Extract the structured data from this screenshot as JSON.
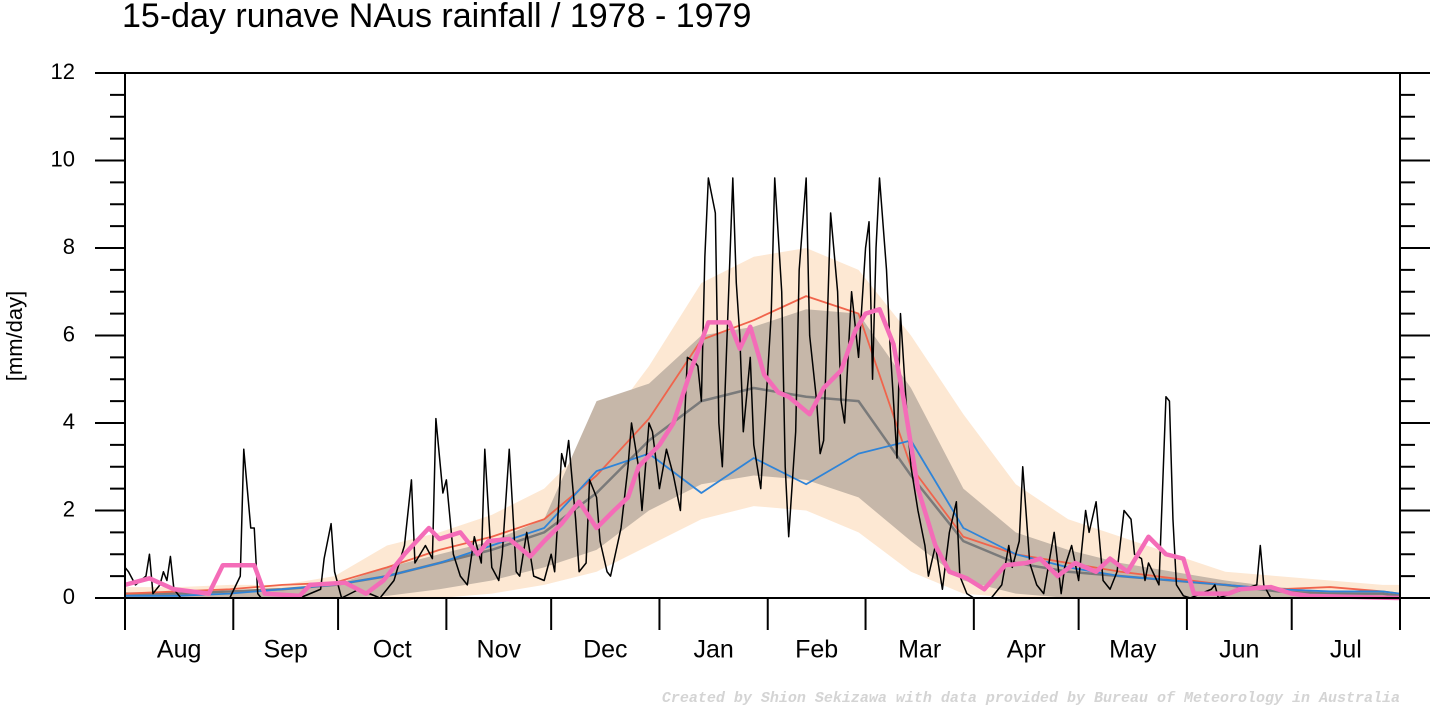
{
  "chart_data": {
    "type": "line",
    "title": "15-day runave NAus rainfall  /  1978 - 1979",
    "y_label": "[mm/day]",
    "credit": "Created by Shion Sekizawa with data provided by Bureau of Meteorology in Australia",
    "categories": [
      "Aug",
      "Sep",
      "Oct",
      "Nov",
      "Dec",
      "Jan",
      "Feb",
      "Mar",
      "Apr",
      "May",
      "Jun",
      "Jul"
    ],
    "xlim": [
      0,
      365
    ],
    "xticks": [
      0,
      31,
      61,
      92,
      122,
      153,
      184,
      212,
      243,
      273,
      304,
      334,
      365
    ],
    "ylim": [
      0,
      12
    ],
    "yticks": [
      0,
      2,
      4,
      6,
      8,
      10,
      12
    ],
    "series": [
      {
        "color": "#fde8d3",
        "x": [
          0,
          15,
          30,
          45,
          60,
          75,
          90,
          105,
          120,
          135,
          150,
          165,
          180,
          195,
          210,
          225,
          240,
          255,
          270,
          285,
          300,
          315,
          330,
          345,
          360,
          365
        ],
        "values": [
          0.25,
          0.25,
          0.3,
          0.3,
          0.5,
          1.2,
          1.5,
          1.9,
          2.5,
          3.7,
          5.3,
          7.2,
          7.8,
          8.0,
          7.5,
          6.0,
          4.2,
          2.6,
          1.8,
          1.4,
          1.0,
          0.6,
          0.5,
          0.4,
          0.3,
          0.3
        ],
        "lower": [
          0,
          0,
          0,
          0,
          0,
          0,
          0,
          0.1,
          0.3,
          0.6,
          1.2,
          1.8,
          2.1,
          2.0,
          1.5,
          0.6,
          0.1,
          0,
          0,
          0,
          0,
          0,
          0,
          0,
          0,
          0
        ]
      },
      {
        "color": "#c6b7a9",
        "x": [
          0,
          15,
          30,
          45,
          60,
          75,
          90,
          105,
          120,
          135,
          150,
          165,
          180,
          195,
          210,
          225,
          240,
          255,
          270,
          285,
          300,
          315,
          330,
          345,
          360,
          365
        ],
        "values": [
          0.1,
          0.1,
          0.15,
          0.2,
          0.3,
          0.7,
          1.0,
          1.3,
          1.8,
          4.5,
          4.9,
          6.0,
          6.2,
          6.6,
          6.5,
          4.8,
          2.5,
          1.5,
          1.1,
          0.8,
          0.6,
          0.4,
          0.25,
          0.15,
          0.1,
          0.1
        ],
        "lower": [
          0,
          0,
          0,
          0,
          0,
          0.05,
          0.2,
          0.4,
          0.7,
          1.1,
          2.0,
          2.6,
          2.8,
          2.7,
          2.3,
          1.3,
          0.4,
          0.1,
          0,
          0,
          0,
          0,
          0,
          0,
          0,
          0
        ]
      },
      {
        "color": "#7a7a7a",
        "x": [
          0,
          15,
          30,
          45,
          60,
          75,
          90,
          105,
          120,
          135,
          150,
          165,
          180,
          195,
          210,
          225,
          240,
          255,
          270,
          285,
          300,
          315,
          330,
          345,
          360,
          365
        ],
        "values": [
          0.1,
          0.1,
          0.15,
          0.2,
          0.3,
          0.5,
          0.8,
          1.1,
          1.5,
          2.4,
          3.6,
          4.5,
          4.8,
          4.6,
          4.5,
          2.8,
          1.3,
          0.8,
          0.6,
          0.5,
          0.4,
          0.3,
          0.15,
          0.1,
          0.1,
          0.05
        ]
      },
      {
        "color": "#f0644c",
        "x": [
          0,
          15,
          30,
          45,
          60,
          75,
          90,
          105,
          120,
          135,
          150,
          165,
          180,
          195,
          210,
          225,
          240,
          255,
          270,
          285,
          300,
          315,
          330,
          345,
          360,
          365
        ],
        "values": [
          0.1,
          0.15,
          0.2,
          0.3,
          0.35,
          0.7,
          1.1,
          1.4,
          1.8,
          2.8,
          4.1,
          5.9,
          6.35,
          6.9,
          6.5,
          3.0,
          1.4,
          1.0,
          0.8,
          0.6,
          0.45,
          0.3,
          0.2,
          0.25,
          0.15,
          0.1
        ]
      },
      {
        "color": "#2f84d8",
        "x": [
          0,
          15,
          30,
          45,
          60,
          75,
          90,
          105,
          120,
          135,
          150,
          165,
          180,
          195,
          210,
          225,
          240,
          255,
          270,
          285,
          300,
          315,
          330,
          345,
          360,
          365
        ],
        "values": [
          0.05,
          0.05,
          0.1,
          0.2,
          0.3,
          0.5,
          0.8,
          1.2,
          1.6,
          2.9,
          3.3,
          2.4,
          3.2,
          2.6,
          3.3,
          3.6,
          1.6,
          1.0,
          0.7,
          0.5,
          0.4,
          0.3,
          0.2,
          0.15,
          0.15,
          0.1
        ]
      },
      {
        "color": "#000000",
        "x": [
          0,
          1,
          3,
          6,
          7,
          8,
          10,
          11,
          12,
          13,
          14,
          16,
          30,
          33,
          34,
          35,
          36,
          37,
          38,
          39,
          50,
          56,
          57,
          59,
          60,
          62,
          67,
          73,
          77,
          80,
          82,
          83,
          86,
          88,
          89,
          91,
          92,
          94,
          96,
          98,
          100,
          102,
          103,
          105,
          107,
          108,
          110,
          112,
          113,
          115,
          117,
          120,
          122,
          123,
          125,
          126,
          127,
          129,
          130,
          132,
          133,
          135,
          136,
          138,
          139,
          142,
          144,
          145,
          147,
          148,
          150,
          151,
          153,
          155,
          157,
          159,
          161,
          163,
          164,
          165,
          166,
          167,
          169,
          170,
          171,
          172,
          174,
          175,
          176,
          177,
          179,
          180,
          182,
          183,
          185,
          186,
          188,
          189,
          190,
          192,
          193,
          195,
          196,
          198,
          199,
          200,
          202,
          204,
          205,
          206,
          208,
          210,
          212,
          213,
          214,
          215,
          216,
          218,
          219,
          221,
          222,
          224,
          225,
          227,
          229,
          230,
          232,
          234,
          236,
          238,
          239,
          241,
          243,
          248,
          251,
          253,
          254,
          256,
          257,
          259,
          261,
          263,
          266,
          268,
          269,
          271,
          273,
          275,
          276,
          278,
          280,
          282,
          284,
          286,
          288,
          289,
          291,
          292,
          293,
          296,
          298,
          299,
          300,
          301,
          303,
          305,
          311,
          312,
          313,
          324,
          325,
          326,
          328,
          365
        ],
        "values": [
          0.7,
          0.6,
          0.3,
          0.5,
          1.0,
          0.1,
          0.3,
          0.6,
          0.4,
          0.95,
          0.2,
          0,
          0,
          0.5,
          3.4,
          2.5,
          1.6,
          1.6,
          0.1,
          0,
          0,
          0.2,
          0.9,
          1.7,
          0.6,
          0,
          0.2,
          0,
          0.4,
          1.2,
          2.7,
          0.8,
          1.2,
          0.9,
          4.1,
          2.4,
          2.7,
          1.0,
          0.5,
          0.3,
          1.4,
          0.8,
          3.4,
          0.7,
          0.4,
          1.0,
          3.4,
          0.6,
          0.5,
          1.5,
          0.5,
          0.4,
          1.0,
          0.6,
          3.3,
          3.0,
          3.6,
          1.8,
          0.6,
          0.8,
          2.7,
          2.3,
          1.3,
          0.6,
          0.5,
          1.6,
          3.0,
          4.0,
          3.0,
          2.0,
          4.0,
          3.8,
          2.5,
          3.4,
          2.8,
          2.0,
          5.5,
          5.4,
          5.3,
          4.5,
          7.8,
          9.6,
          8.8,
          4.0,
          3.0,
          5.2,
          9.6,
          7.2,
          6.0,
          3.8,
          5.5,
          3.5,
          2.5,
          3.8,
          6.5,
          9.6,
          7.0,
          3.0,
          1.4,
          3.8,
          7.5,
          9.6,
          6.0,
          4.5,
          3.3,
          3.6,
          8.8,
          7.0,
          4.5,
          4.0,
          7.0,
          5.5,
          8.0,
          8.6,
          5.0,
          8.0,
          9.6,
          7.5,
          5.8,
          3.2,
          6.5,
          4.0,
          3.0,
          2.0,
          1.2,
          0.5,
          1.2,
          0.2,
          1.5,
          2.2,
          0.5,
          0.1,
          0,
          0,
          0.3,
          1.2,
          0.7,
          1.3,
          3.0,
          0.8,
          0.3,
          0.1,
          1.5,
          0.1,
          0.7,
          1.2,
          0.4,
          2.0,
          1.5,
          2.2,
          0.4,
          0.2,
          0.6,
          2.0,
          1.8,
          1.0,
          0.9,
          0.4,
          0.8,
          0.3,
          4.6,
          4.5,
          1.8,
          0.3,
          0.05,
          0,
          0.2,
          0.3,
          0,
          0.3,
          1.2,
          0.3,
          0,
          0
        ]
      },
      {
        "color": "#f46cb8",
        "x": [
          0,
          7,
          14,
          24,
          28,
          37,
          40,
          50,
          53,
          63,
          69,
          74,
          80,
          87,
          90,
          96,
          101,
          104,
          110,
          116,
          120,
          125,
          130,
          135,
          140,
          144,
          147,
          153,
          157,
          162,
          167,
          173,
          176,
          179,
          183,
          187,
          190,
          196,
          200,
          205,
          209,
          212,
          216,
          220,
          223,
          227,
          232,
          236,
          241,
          246,
          252,
          258,
          262,
          267,
          272,
          278,
          282,
          287,
          293,
          298,
          303,
          306,
          316,
          319,
          328,
          334,
          339,
          365
        ],
        "values": [
          0.3,
          0.45,
          0.2,
          0.1,
          0.75,
          0.75,
          0.1,
          0.05,
          0.3,
          0.35,
          0.1,
          0.4,
          1.0,
          1.6,
          1.35,
          1.5,
          1.0,
          1.3,
          1.35,
          0.95,
          1.3,
          1.7,
          2.2,
          1.6,
          2.0,
          2.3,
          3.0,
          3.5,
          4.0,
          5.2,
          6.3,
          6.3,
          5.7,
          6.2,
          5.1,
          4.7,
          4.6,
          4.2,
          4.8,
          5.2,
          6.1,
          6.5,
          6.6,
          5.8,
          4.5,
          2.5,
          1.2,
          0.6,
          0.45,
          0.2,
          0.75,
          0.8,
          0.9,
          0.5,
          0.8,
          0.6,
          0.9,
          0.6,
          1.4,
          1.0,
          0.9,
          0.1,
          0.1,
          0.2,
          0.25,
          0.1,
          0.05,
          0.0
        ]
      }
    ]
  }
}
